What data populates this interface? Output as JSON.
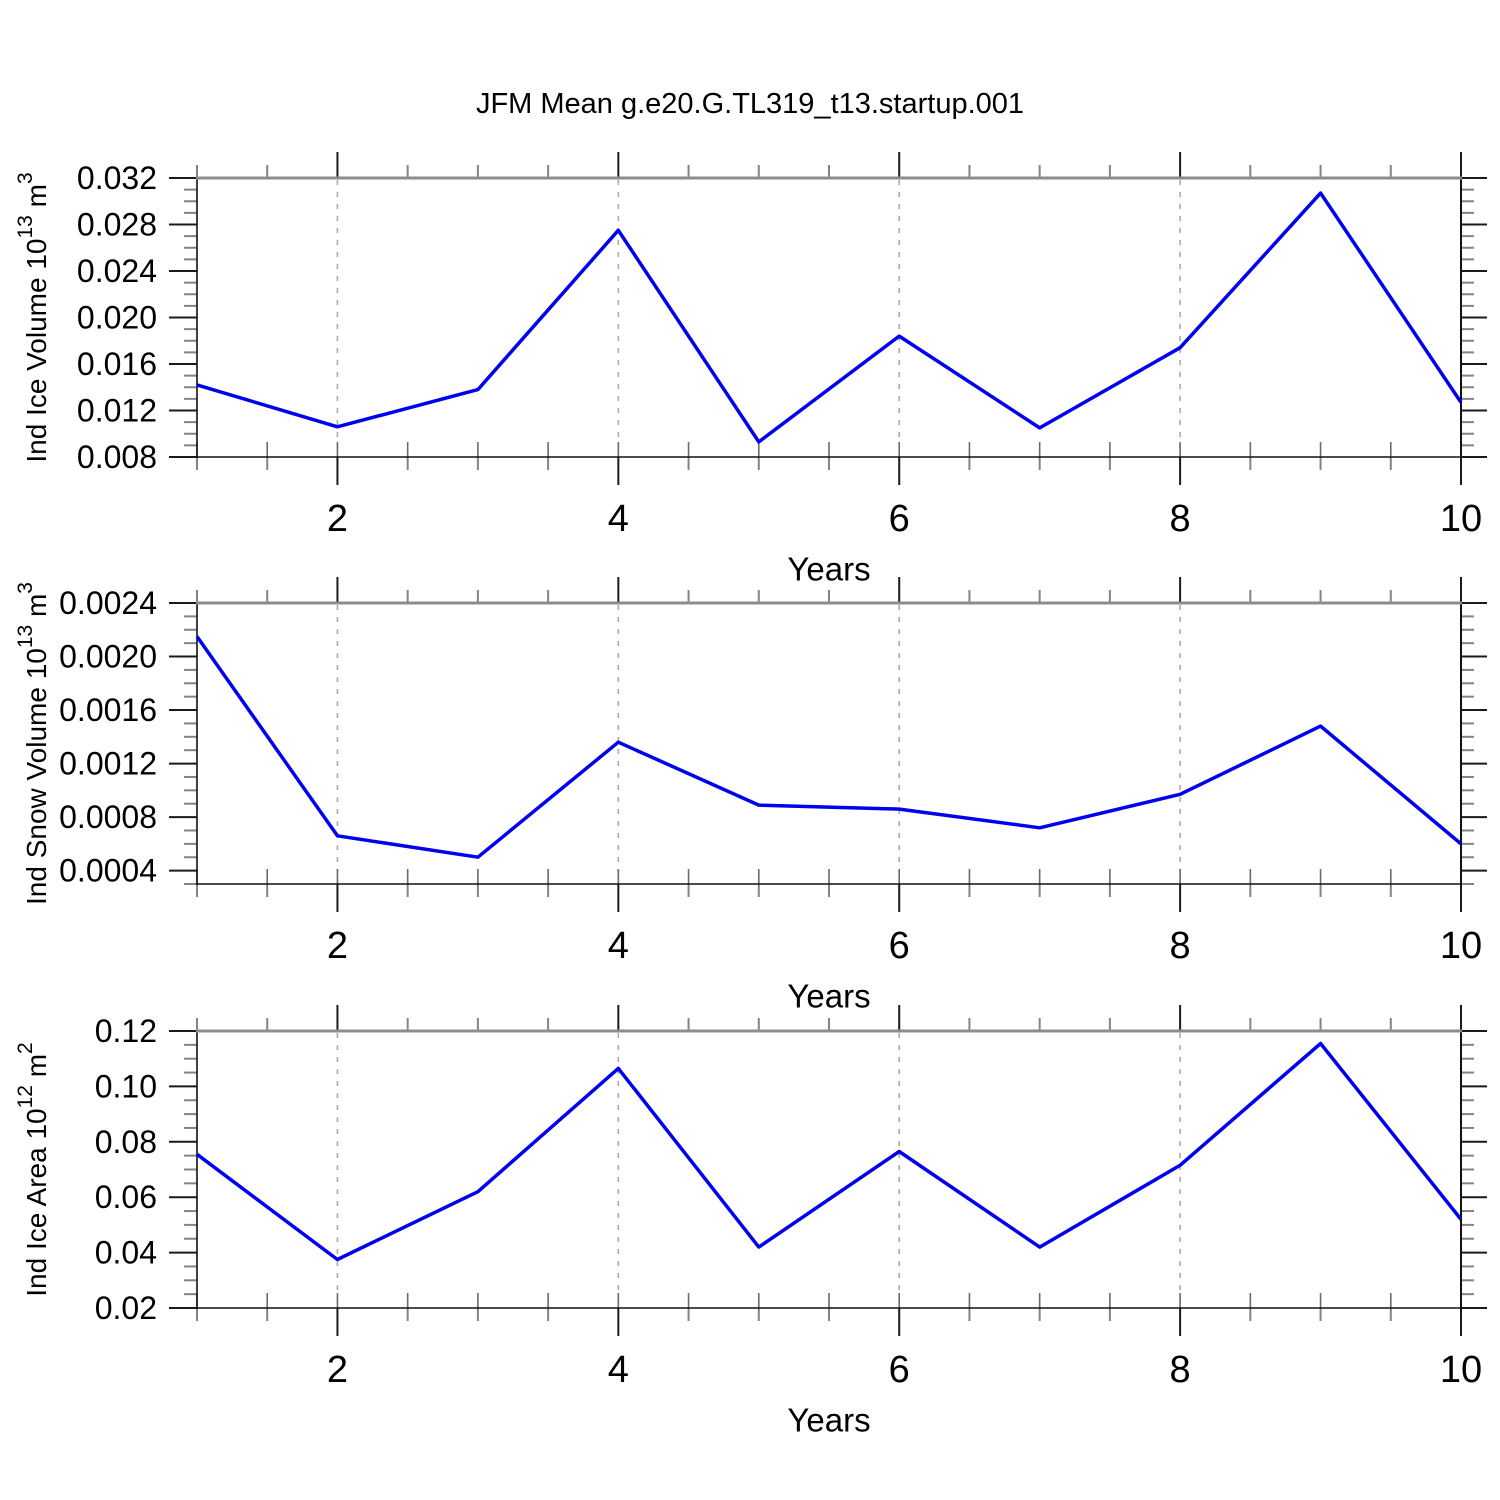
{
  "title": "JFM Mean g.e20.G.TL319_t13.startup.001",
  "style": {
    "background": "#ffffff",
    "grid_color": "#ababab",
    "frame_color": "#111111",
    "frame_top_color": "#8c8c8c",
    "tick_major_color": "#1a1a1a",
    "tick_minor_color": "#848484",
    "tick_inner_color": "#6b6b6b",
    "text_color": "#000000"
  },
  "chart_data": [
    {
      "type": "line",
      "name": "ice-volume",
      "ylabel": {
        "base": "Ind Ice Volume 10",
        "exp": "13",
        "unit": " m",
        "unit_exp": "3"
      },
      "xlabel": "Years",
      "x": [
        1,
        2,
        3,
        4,
        5,
        6,
        7,
        8,
        9,
        10
      ],
      "values": [
        0.0142,
        0.0106,
        0.0138,
        0.0275,
        0.0093,
        0.0184,
        0.0105,
        0.0174,
        0.0307,
        0.0127
      ],
      "xlim": [
        1,
        10
      ],
      "ylim": [
        0.008,
        0.032
      ],
      "ytick_values": [
        0.008,
        0.012,
        0.016,
        0.02,
        0.024,
        0.028,
        0.032
      ],
      "ytick_labels": [
        "0.008",
        "0.012",
        "0.016",
        "0.020",
        "0.024",
        "0.028",
        "0.032"
      ],
      "yminor_step": 0.001,
      "xtick_values": [
        2,
        4,
        6,
        8,
        10
      ],
      "xtick_labels": [
        "2",
        "4",
        "6",
        "8",
        "10"
      ],
      "xminor_step": 0.5,
      "grid_x": [
        2,
        4,
        6,
        8
      ],
      "legend": "none",
      "line_color": "#0000ee"
    },
    {
      "type": "line",
      "name": "snow-volume",
      "ylabel": {
        "base": "Ind Snow Volume 10",
        "exp": "13",
        "unit": " m",
        "unit_exp": "3"
      },
      "xlabel": "Years",
      "x": [
        1,
        2,
        3,
        4,
        5,
        6,
        7,
        8,
        9,
        10
      ],
      "values": [
        0.00215,
        0.00066,
        0.0005,
        0.00136,
        0.00089,
        0.00086,
        0.00072,
        0.00097,
        0.00148,
        0.0006
      ],
      "xlim": [
        1,
        10
      ],
      "ylim": [
        0.0003,
        0.0024
      ],
      "ytick_values": [
        0.0004,
        0.0008,
        0.0012,
        0.0016,
        0.002,
        0.0024
      ],
      "ytick_labels": [
        "0.0004",
        "0.0008",
        "0.0012",
        "0.0016",
        "0.0020",
        "0.0024"
      ],
      "yminor_step": 0.0001,
      "xtick_values": [
        2,
        4,
        6,
        8,
        10
      ],
      "xtick_labels": [
        "2",
        "4",
        "6",
        "8",
        "10"
      ],
      "xminor_step": 0.5,
      "grid_x": [
        2,
        4,
        6,
        8
      ],
      "legend": "none",
      "line_color": "#0000ee"
    },
    {
      "type": "line",
      "name": "ice-area",
      "ylabel": {
        "base": "Ind Ice Area 10",
        "exp": "12",
        "unit": " m",
        "unit_exp": "2"
      },
      "xlabel": "Years",
      "x": [
        1,
        2,
        3,
        4,
        5,
        6,
        7,
        8,
        9,
        10
      ],
      "values": [
        0.0755,
        0.0375,
        0.062,
        0.1065,
        0.042,
        0.0765,
        0.042,
        0.0715,
        0.1155,
        0.052
      ],
      "xlim": [
        1,
        10
      ],
      "ylim": [
        0.02,
        0.12
      ],
      "ytick_values": [
        0.02,
        0.04,
        0.06,
        0.08,
        0.1,
        0.12
      ],
      "ytick_labels": [
        "0.02",
        "0.04",
        "0.06",
        "0.08",
        "0.10",
        "0.12"
      ],
      "yminor_step": 0.005,
      "xtick_values": [
        2,
        4,
        6,
        8,
        10
      ],
      "xtick_labels": [
        "2",
        "4",
        "6",
        "8",
        "10"
      ],
      "xminor_step": 0.5,
      "grid_x": [
        2,
        4,
        6,
        8
      ],
      "legend": "none",
      "line_color": "#0000ee"
    }
  ]
}
